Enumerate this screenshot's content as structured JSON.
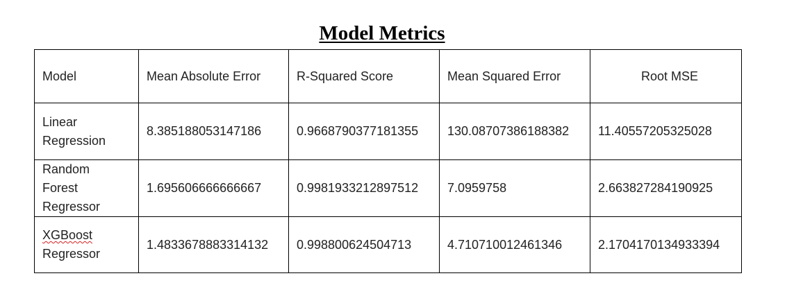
{
  "title": "Model Metrics",
  "table": {
    "headers": [
      "Model",
      "Mean Absolute Error",
      "R-Squared Score",
      "Mean Squared Error",
      "Root MSE"
    ],
    "rows": [
      {
        "model_line1": "Linear",
        "model_line2": "Regression",
        "mae": "8.385188053147186",
        "r2": "0.9668790377181355",
        "mse": "130.08707386188382",
        "rmse": "11.40557205325028"
      },
      {
        "model_line1": "Random",
        "model_line2": "Forest",
        "model_line3": "Regressor",
        "mae": "1.695606666666667",
        "r2": "0.9981933212897512",
        "mse": "7.0959758",
        "rmse": "2.663827284190925"
      },
      {
        "model_line1": "XGBoost",
        "model_line2": "Regressor",
        "mae": "1.4833678883314132",
        "r2": "0.998800624504713",
        "mse": "4.710710012461346",
        "rmse": "2.1704170134933394"
      }
    ]
  },
  "colors": {
    "text": "#222222",
    "border": "#000000",
    "spellcheck_underline": "#d21f1f"
  }
}
